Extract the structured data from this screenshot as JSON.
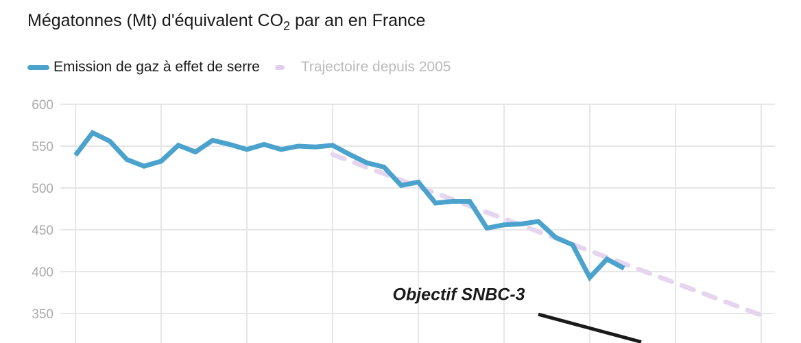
{
  "chart_data": {
    "type": "line",
    "title_main": "Mégatonnes (Mt) d'équivalent CO",
    "title_sub": "2",
    "title_rest": " par an en France",
    "ylabel": "",
    "xlabel": "",
    "ylim": [
      350,
      600
    ],
    "yticks": [
      600,
      550,
      500,
      450,
      400,
      350
    ],
    "xlim": [
      1990,
      2030
    ],
    "xgrid": [
      1990,
      1995,
      2000,
      2005,
      2010,
      2015,
      2020,
      2025,
      2030
    ],
    "grid": true,
    "legend_position": "top-left",
    "series": [
      {
        "name": "Emission de gaz à effet de serre",
        "color": "#4ba3cd",
        "style": "solid",
        "x": [
          1990,
          1991,
          1992,
          1993,
          1994,
          1995,
          1996,
          1997,
          1998,
          1999,
          2000,
          2001,
          2002,
          2003,
          2004,
          2005,
          2006,
          2007,
          2008,
          2009,
          2010,
          2011,
          2012,
          2013,
          2014,
          2015,
          2016,
          2017,
          2018,
          2019,
          2020,
          2021,
          2022
        ],
        "values": [
          539,
          566,
          556,
          534,
          526,
          532,
          551,
          543,
          557,
          552,
          546,
          552,
          546,
          550,
          549,
          551,
          540,
          530,
          525,
          503,
          507,
          482,
          484,
          484,
          452,
          456,
          457,
          460,
          441,
          432,
          393,
          415,
          404
        ]
      },
      {
        "name": "Trajectoire depuis 2005",
        "color": "#e6d5ee",
        "style": "dashed",
        "x": [
          2005,
          2030
        ],
        "values": [
          540,
          348
        ]
      }
    ],
    "annotations": [
      {
        "text": "Objectif SNBC-3",
        "x": 2008.5,
        "y": 366,
        "line": {
          "x": [
            2017,
            2023
          ],
          "values": [
            349,
            316
          ],
          "color": "#1a1a1a"
        }
      }
    ]
  }
}
